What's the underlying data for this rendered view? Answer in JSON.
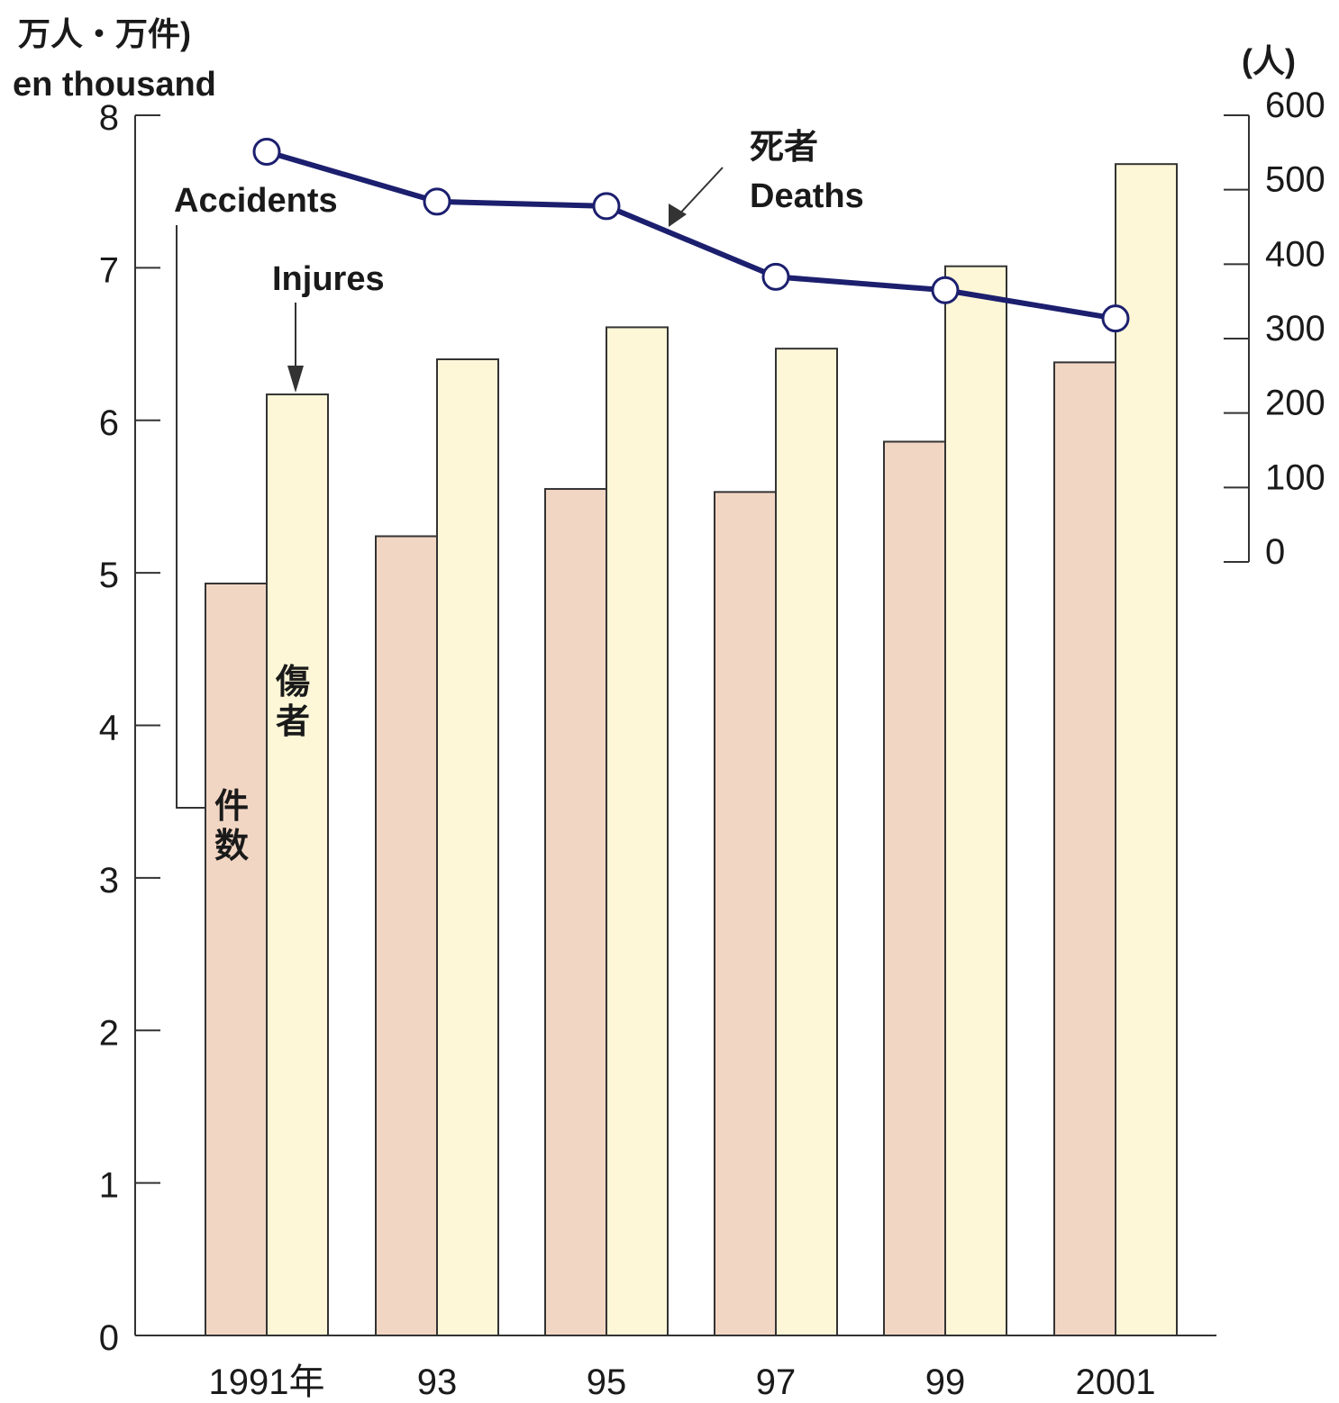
{
  "chart_data": {
    "type": "bar",
    "left_axis_unit": "万人・万件)",
    "left_axis_unit_en": "en thousand",
    "right_axis_unit": "(人)",
    "categories": [
      "1991年",
      "93",
      "95",
      "97",
      "99",
      "2001"
    ],
    "ylim": [
      0,
      8
    ],
    "yticks": [
      "0",
      "1",
      "2",
      "3",
      "4",
      "5",
      "6",
      "7",
      "8"
    ],
    "y2lim": [
      0,
      600
    ],
    "y2ticks": [
      "0",
      "100",
      "200",
      "300",
      "400",
      "500",
      "600"
    ],
    "series": [
      {
        "key": "accidents",
        "values": [
          4.93,
          5.24,
          5.55,
          5.53,
          5.86,
          6.38
        ]
      },
      {
        "key": "injures",
        "values": [
          6.17,
          6.4,
          6.61,
          6.47,
          7.01,
          7.68
        ]
      },
      {
        "key": "deaths",
        "axis": "right",
        "values": [
          551,
          484,
          478,
          383,
          365,
          327
        ]
      }
    ],
    "annotations": {
      "accidents_en": "Accidents",
      "accidents_jp": [
        "件",
        "数"
      ],
      "injures_en": "Injures",
      "injures_jp": [
        "傷",
        "者"
      ],
      "deaths_jp": "死者",
      "deaths_en": "Deaths"
    },
    "colors": {
      "accidents": "#f2d6c4",
      "injures": "#fdf7d7",
      "deaths": "#1c1f6e",
      "axis": "#333333"
    }
  }
}
